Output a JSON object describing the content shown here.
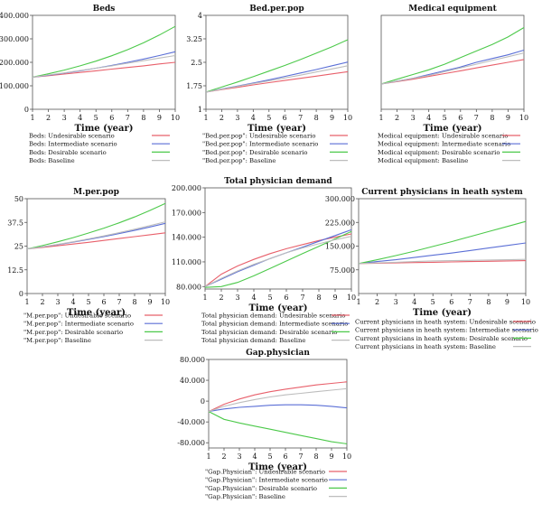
{
  "colors": {
    "undesirable": "#e8606b",
    "intermediate": "#5b6fd6",
    "desirable": "#4cc94a",
    "baseline": "#bdbdbd"
  },
  "chart_data": [
    {
      "type": "line",
      "title": "Beds",
      "xlabel": "Time (year)",
      "ylabel": "",
      "x": [
        1,
        2,
        3,
        4,
        5,
        6,
        7,
        8,
        9,
        10
      ],
      "ylim": [
        0,
        400000
      ],
      "yticks": [
        0,
        100000,
        200000,
        300000,
        400000
      ],
      "yticklabels": [
        "0",
        "100.000",
        "200.000",
        "300.000",
        "400.000"
      ],
      "series": [
        {
          "name": "Beds: Undesirable scenario",
          "values": [
            137000,
            143000,
            150000,
            157000,
            164000,
            171000,
            178000,
            185000,
            193000,
            200000
          ]
        },
        {
          "name": "Beds: Intermediate scenario",
          "values": [
            137000,
            145000,
            154000,
            164000,
            175000,
            187000,
            200000,
            214000,
            229000,
            245000
          ]
        },
        {
          "name": "Beds: Desirable scenario",
          "values": [
            137000,
            151000,
            167000,
            185000,
            205000,
            228000,
            254000,
            283000,
            316000,
            353000
          ]
        },
        {
          "name": "Beds: Baseline",
          "values": [
            137000,
            146000,
            155000,
            165000,
            175000,
            185000,
            196000,
            207000,
            218000,
            229000
          ]
        }
      ]
    },
    {
      "type": "line",
      "title": "Bed.per.pop",
      "xlabel": "Time (year)",
      "ylabel": "",
      "x": [
        1,
        2,
        3,
        4,
        5,
        6,
        7,
        8,
        9,
        10
      ],
      "ylim": [
        1,
        4
      ],
      "yticks": [
        1,
        1.75,
        2.5,
        3.25,
        4
      ],
      "yticklabels": [
        "1",
        "1.75",
        "2.5",
        "3.25",
        "4"
      ],
      "series": [
        {
          "name": "\"Bed.per.pop\": Undesirable scenario",
          "values": [
            1.55,
            1.63,
            1.7,
            1.78,
            1.85,
            1.92,
            1.99,
            2.06,
            2.13,
            2.2
          ]
        },
        {
          "name": "\"Bed.per.pop\": Intermediate scenario",
          "values": [
            1.55,
            1.65,
            1.74,
            1.84,
            1.94,
            2.05,
            2.16,
            2.27,
            2.39,
            2.51
          ]
        },
        {
          "name": "\"Bed.per.pop\": Desirable scenario",
          "values": [
            1.55,
            1.71,
            1.87,
            2.04,
            2.22,
            2.4,
            2.59,
            2.79,
            3.0,
            3.22
          ]
        },
        {
          "name": "\"Bed.per.pop\": Baseline",
          "values": [
            1.55,
            1.64,
            1.73,
            1.82,
            1.91,
            2.0,
            2.09,
            2.19,
            2.29,
            2.39
          ]
        }
      ]
    },
    {
      "type": "line",
      "title": "Medical equipment",
      "xlabel": "Time (year)",
      "ylabel": "",
      "x": [
        1,
        2,
        3,
        4,
        5,
        6,
        7,
        8,
        9,
        10
      ],
      "ylim": [
        0,
        1
      ],
      "yticks": [],
      "yticklabels": [],
      "series": [
        {
          "name": "Medical equipment: Undesirable scenario",
          "values": [
            0.27,
            0.295,
            0.32,
            0.35,
            0.38,
            0.41,
            0.44,
            0.47,
            0.5,
            0.53
          ]
        },
        {
          "name": "Medical equipment: Intermediate scenario",
          "values": [
            0.27,
            0.3,
            0.33,
            0.37,
            0.41,
            0.45,
            0.5,
            0.54,
            0.58,
            0.63
          ]
        },
        {
          "name": "Medical equipment: Desirable scenario",
          "values": [
            0.27,
            0.32,
            0.37,
            0.42,
            0.48,
            0.55,
            0.62,
            0.69,
            0.77,
            0.87
          ]
        },
        {
          "name": "Medical equipment: Baseline",
          "values": [
            0.27,
            0.3,
            0.33,
            0.36,
            0.4,
            0.44,
            0.48,
            0.52,
            0.56,
            0.6
          ]
        }
      ]
    },
    {
      "type": "line",
      "title": "M.per.pop",
      "xlabel": "Time (year)",
      "ylabel": "",
      "x": [
        1,
        2,
        3,
        4,
        5,
        6,
        7,
        8,
        9,
        10
      ],
      "ylim": [
        0,
        50
      ],
      "yticks": [
        0,
        12.5,
        25,
        37.5,
        50
      ],
      "yticklabels": [
        "0",
        "12.5",
        "25",
        "37.5",
        "50"
      ],
      "series": [
        {
          "name": "\"M.per.pop\": Undesirable scenario",
          "values": [
            23.5,
            24.3,
            25.2,
            26.1,
            27.0,
            28.0,
            29.0,
            30.0,
            31.0,
            32.0
          ]
        },
        {
          "name": "\"M.per.pop\": Intermediate scenario",
          "values": [
            23.5,
            24.6,
            25.8,
            27.1,
            28.5,
            30.0,
            31.6,
            33.3,
            35.1,
            37.0
          ]
        },
        {
          "name": "\"M.per.pop\": Desirable scenario",
          "values": [
            23.5,
            25.3,
            27.3,
            29.5,
            31.9,
            34.5,
            37.3,
            40.4,
            43.8,
            47.5
          ]
        },
        {
          "name": "\"M.per.pop\": Baseline",
          "values": [
            23.5,
            24.6,
            25.9,
            27.3,
            28.8,
            30.4,
            32.1,
            33.9,
            35.8,
            37.8
          ]
        }
      ]
    },
    {
      "type": "line",
      "title": "Total physician demand",
      "xlabel": "Time (year)",
      "ylabel": "",
      "x": [
        1,
        2,
        3,
        4,
        5,
        6,
        7,
        8,
        9,
        10
      ],
      "ylim": [
        77000,
        200000
      ],
      "yticks": [
        80000,
        110000,
        140000,
        170000,
        200000
      ],
      "yticklabels": [
        "80.000",
        "110.000",
        "140.000",
        "170.000",
        "200.000"
      ],
      "series": [
        {
          "name": "Total physician demand: Undesirable scenario",
          "values": [
            80000,
            95000,
            105000,
            113000,
            120000,
            126000,
            131000,
            136000,
            140000,
            144000
          ]
        },
        {
          "name": "Total physician demand: Intermediate scenario",
          "values": [
            80000,
            89000,
            98000,
            106000,
            114000,
            121000,
            128000,
            135000,
            142000,
            149000
          ]
        },
        {
          "name": "Total physician demand: Desirable scenario",
          "values": [
            79000,
            80000,
            85000,
            93000,
            102000,
            111000,
            120000,
            129000,
            138000,
            147000
          ]
        },
        {
          "name": "Total physician demand: Baseline",
          "values": [
            80000,
            90000,
            99000,
            107000,
            114000,
            121000,
            127000,
            132000,
            137000,
            141000
          ]
        }
      ]
    },
    {
      "type": "line",
      "title": "Current physicians in heath system",
      "xlabel": "Time (year)",
      "ylabel": "",
      "x": [
        1,
        2,
        3,
        4,
        5,
        6,
        7,
        8,
        9,
        10
      ],
      "ylim": [
        0,
        300000
      ],
      "yticks": [
        75000,
        150000,
        225000,
        300000
      ],
      "yticklabels": [
        "75.000",
        "150.000",
        "225.000",
        "300.000"
      ],
      "series": [
        {
          "name": "Current physicians in heath system: Undesirable scenario",
          "values": [
            95000,
            96000,
            97000,
            98000,
            99000,
            100000,
            101000,
            102000,
            103000,
            104000
          ]
        },
        {
          "name": "Current physicians in heath system: Intermediate scenario",
          "values": [
            95000,
            101000,
            107000,
            114000,
            121000,
            128000,
            136000,
            144000,
            152000,
            160000
          ]
        },
        {
          "name": "Current physicians in heath system: Desirable scenario",
          "values": [
            95000,
            107000,
            120000,
            134000,
            149000,
            164000,
            180000,
            196000,
            212000,
            228000
          ]
        },
        {
          "name": "Current physicians in heath system: Baseline",
          "values": [
            95000,
            97000,
            99000,
            101000,
            103000,
            104000,
            105000,
            106000,
            107000,
            108000
          ]
        }
      ]
    },
    {
      "type": "line",
      "title": "Gap.physician",
      "xlabel": "Time (year)",
      "ylabel": "",
      "x": [
        1,
        2,
        3,
        4,
        5,
        6,
        7,
        8,
        9,
        10
      ],
      "ylim": [
        -90000,
        80000
      ],
      "yticks": [
        -80000,
        -40000,
        0,
        40000,
        80000
      ],
      "yticklabels": [
        "-80.000",
        "-40.000",
        "0",
        "40.000",
        "80.000"
      ],
      "series": [
        {
          "name": "\"Gap.Physician\": Undesirable scenario",
          "values": [
            -20000,
            -6000,
            4000,
            12000,
            18000,
            23000,
            27000,
            31000,
            34000,
            37000
          ]
        },
        {
          "name": "\"Gap.Physician\": Intermediate scenario",
          "values": [
            -20000,
            -15000,
            -12000,
            -10000,
            -8000,
            -7000,
            -7000,
            -8000,
            -10000,
            -13000
          ]
        },
        {
          "name": "\"Gap.Physician\": Desirable scenario",
          "values": [
            -20000,
            -35000,
            -42000,
            -48000,
            -54000,
            -60000,
            -66000,
            -72000,
            -78000,
            -82000
          ]
        },
        {
          "name": "\"Gap.Physician\": Baseline",
          "values": [
            -20000,
            -10000,
            -3000,
            3000,
            8000,
            12000,
            15000,
            18000,
            21000,
            24000
          ]
        }
      ]
    }
  ]
}
